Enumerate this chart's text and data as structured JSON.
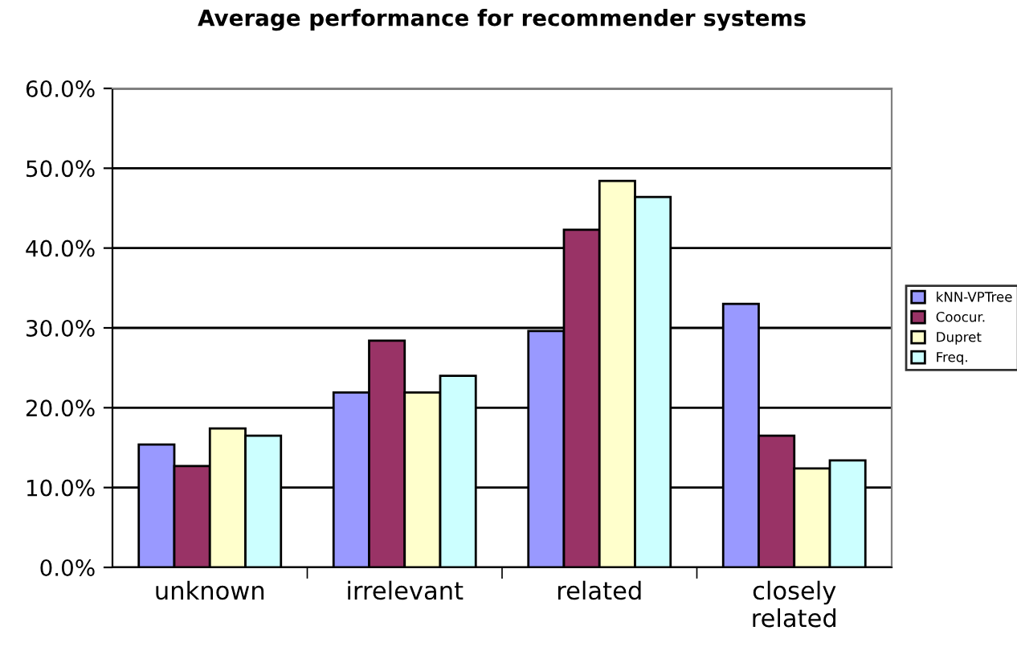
{
  "chart_data": {
    "type": "bar",
    "title": "Average performance for recommender systems",
    "categories": [
      "unknown",
      "irrelevant",
      "related",
      "closely\nrelated"
    ],
    "series": [
      {
        "name": "kNN-VPTree",
        "color": "#9999ff",
        "values": [
          15.4,
          21.9,
          29.6,
          33.0
        ]
      },
      {
        "name": "Coocur.",
        "color": "#993366",
        "values": [
          12.7,
          28.4,
          42.3,
          16.5
        ]
      },
      {
        "name": "Dupret",
        "color": "#ffffcc",
        "values": [
          17.4,
          21.9,
          48.4,
          12.4
        ]
      },
      {
        "name": "Freq.",
        "color": "#ccffff",
        "values": [
          16.5,
          24.0,
          46.4,
          13.4
        ]
      }
    ],
    "ylim": [
      0,
      60
    ],
    "yticks": [
      {
        "value": 0,
        "label": "0.0%"
      },
      {
        "value": 10,
        "label": "10.0%"
      },
      {
        "value": 20,
        "label": "20.0%"
      },
      {
        "value": 30,
        "label": "30.0%"
      },
      {
        "value": 40,
        "label": "40.0%"
      },
      {
        "value": 50,
        "label": "50.0%"
      },
      {
        "value": 60,
        "label": "60.0%"
      }
    ],
    "grid": "y",
    "legend": "right"
  }
}
